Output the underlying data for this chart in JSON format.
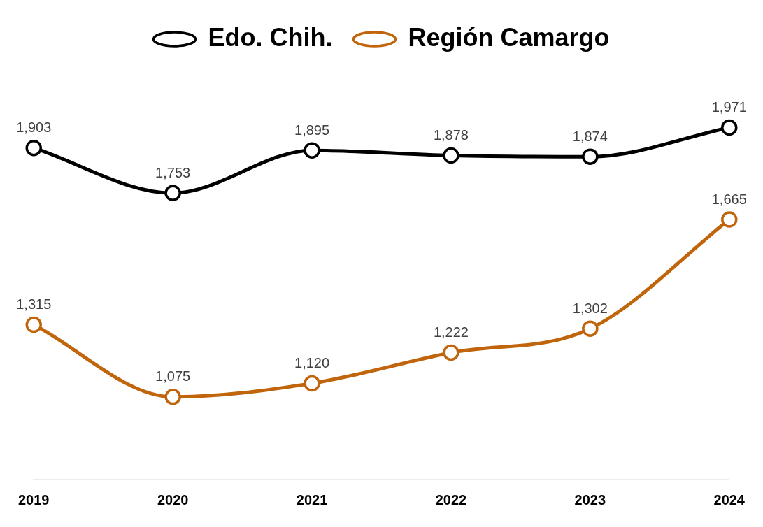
{
  "chart_data": {
    "type": "line",
    "categories": [
      "2019",
      "2020",
      "2021",
      "2022",
      "2023",
      "2024"
    ],
    "series": [
      {
        "name": "Edo. Chih.",
        "color": "#000000",
        "values": [
          1903,
          1753,
          1895,
          1878,
          1874,
          1971
        ],
        "value_labels": [
          "1,903",
          "1,753",
          "1,895",
          "1,878",
          "1,874",
          "1,971"
        ]
      },
      {
        "name": "Región Camargo",
        "color": "#c0650c",
        "values": [
          1315,
          1075,
          1120,
          1222,
          1302,
          1665
        ],
        "value_labels": [
          "1,315",
          "1,075",
          "1,120",
          "1,222",
          "1,302",
          "1,665"
        ]
      }
    ],
    "tick_labels": "x",
    "legend": "top",
    "grid": false,
    "marker": "circle",
    "line_style": "solid"
  }
}
